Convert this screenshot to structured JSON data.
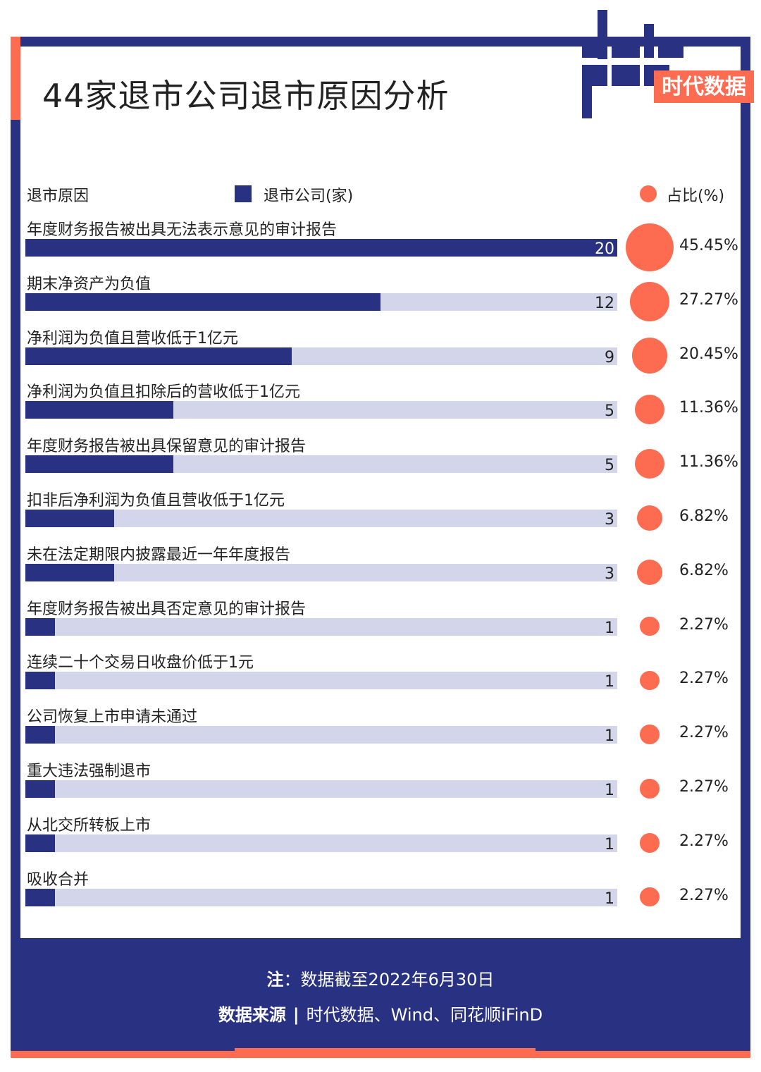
{
  "colors": {
    "navy": "#293282",
    "orange": "#fd6b50",
    "track": "#d3d5ea"
  },
  "logo": {
    "word": "data",
    "cn": "时代数据"
  },
  "chart_data": {
    "type": "bar",
    "title": "44家退市公司退市原因分析",
    "category_header": "退市原因",
    "series": [
      {
        "name": "退市公司(家)",
        "values": [
          20,
          12,
          9,
          5,
          5,
          3,
          3,
          1,
          1,
          1,
          1,
          1,
          1
        ]
      },
      {
        "name": "占比(%)",
        "values": [
          "45.45%",
          "27.27%",
          "20.45%",
          "11.36%",
          "11.36%",
          "6.82%",
          "6.82%",
          "2.27%",
          "2.27%",
          "2.27%",
          "2.27%",
          "2.27%",
          "2.27%"
        ]
      }
    ],
    "categories": [
      "年度财务报告被出具无法表示意见的审计报告",
      "期末净资产为负值",
      "净利润为负值且营收低于1亿元",
      "净利润为负值且扣除后的营收低于1亿元",
      "年度财务报告被出具保留意见的审计报告",
      "扣非后净利润为负值且营收低于1亿元",
      "未在法定期限内披露最近一年年度报告",
      "年度财务报告被出具否定意见的审计报告",
      "连续二十个交易日收盘价低于1元",
      "公司恢复上市申请未通过",
      "重大违法强制退市",
      "从北交所转板上市",
      "吸收合并"
    ],
    "xlim": [
      0,
      20
    ]
  },
  "footer": {
    "note_label": "注",
    "note_colon": "：",
    "note_text": "数据截至2022年6月30日",
    "source_label": "数据来源",
    "source_sep": "|",
    "source_text": "时代数据、Wind、同花顺iFinD"
  }
}
